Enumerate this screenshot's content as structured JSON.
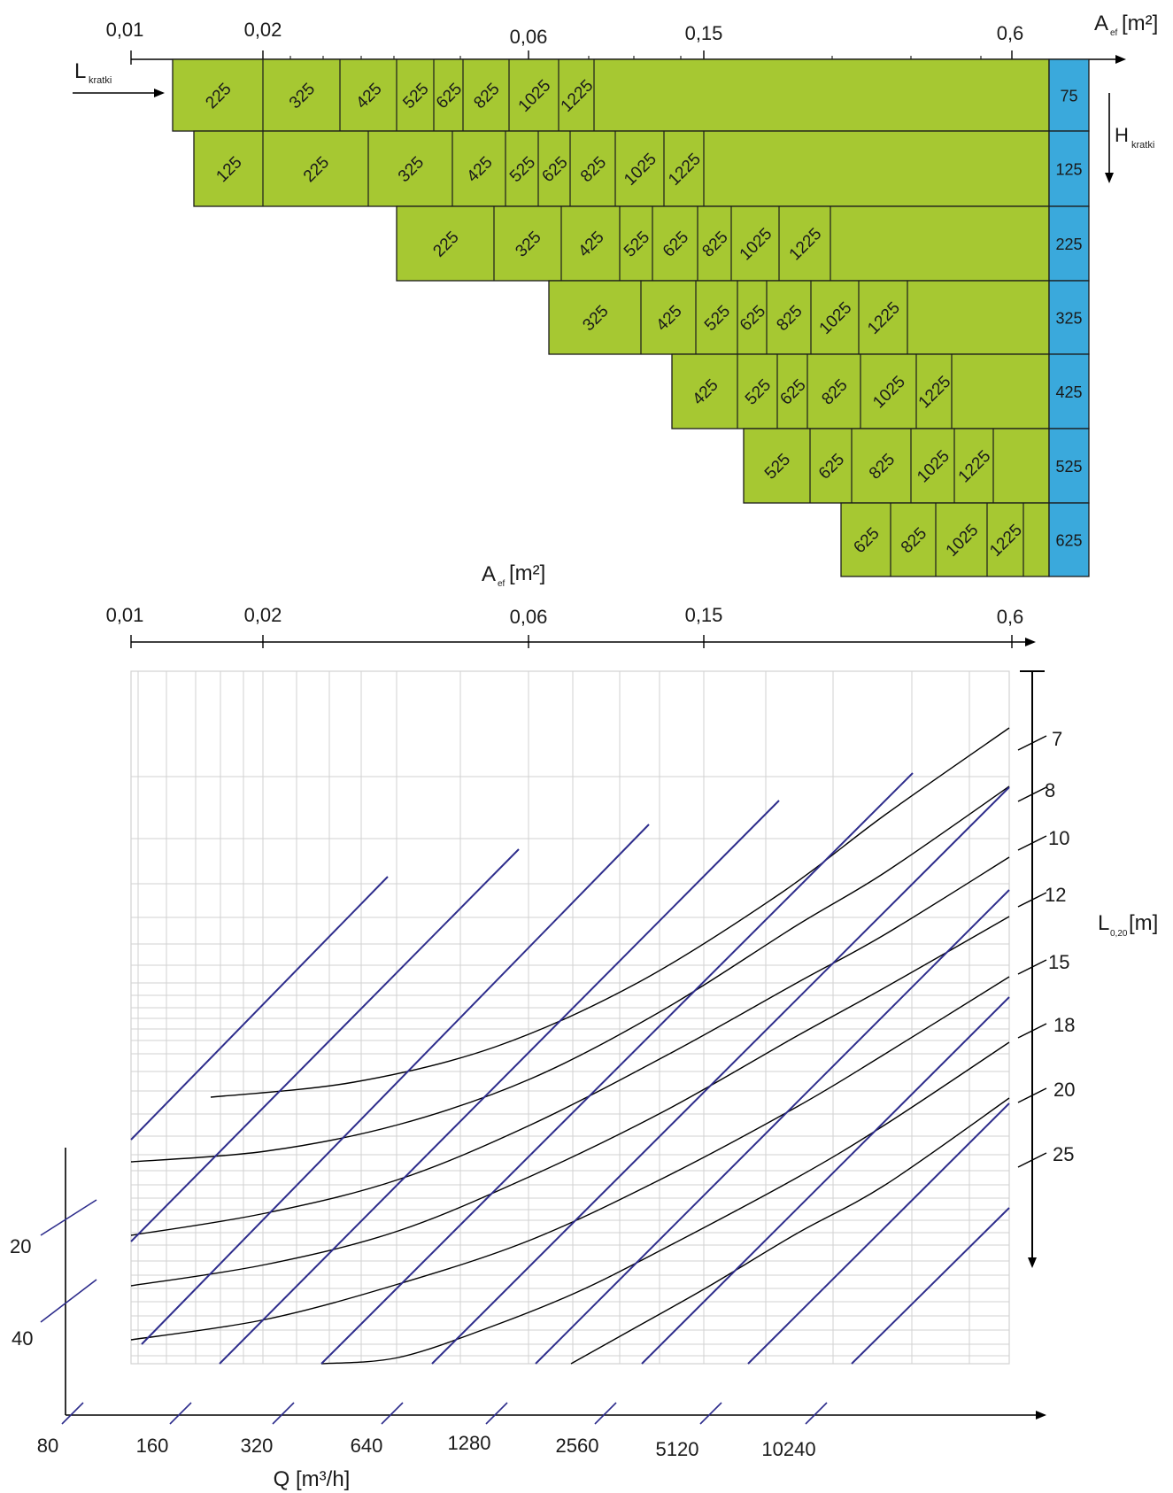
{
  "chart_data": {
    "type": "nomogram",
    "top_table": {
      "axis": {
        "label_main": "A",
        "label_sub": "ef",
        "label_unit": "[m²]",
        "ticks": [
          "0,01",
          "0,02",
          "0,06",
          "0,15",
          "0,6"
        ],
        "scale": "log"
      },
      "row_axis": {
        "label_main": "H",
        "label_sub": "kratki"
      },
      "col_axis": {
        "label_main": "L",
        "label_sub": "kratki"
      },
      "rows": [
        {
          "H": "75",
          "L": [
            "225",
            "325",
            "425",
            "525",
            "625",
            "825",
            "1025",
            "1225"
          ]
        },
        {
          "H": "125",
          "L": [
            "125",
            "225",
            "325",
            "425",
            "525",
            "625",
            "825",
            "1025",
            "1225"
          ]
        },
        {
          "H": "225",
          "L": [
            "225",
            "325",
            "425",
            "525",
            "625",
            "825",
            "1025",
            "1225"
          ]
        },
        {
          "H": "325",
          "L": [
            "325",
            "425",
            "525",
            "625",
            "825",
            "1025",
            "1225"
          ]
        },
        {
          "H": "425",
          "L": [
            "425",
            "525",
            "625",
            "825",
            "1025",
            "1225"
          ]
        },
        {
          "H": "525",
          "L": [
            "525",
            "625",
            "825",
            "1025",
            "1225"
          ]
        },
        {
          "H": "625",
          "L": [
            "625",
            "825",
            "1025",
            "1225"
          ]
        }
      ]
    },
    "main_chart": {
      "x_axis": {
        "label_main": "A",
        "label_sub": "ef",
        "label_unit": "[m²]",
        "ticks": [
          "0,01",
          "0,02",
          "0,06",
          "0,15",
          "0,6"
        ],
        "scale": "log"
      },
      "right_axis": {
        "label_main": "L",
        "label_sub": "0,20",
        "label_unit": "[m]",
        "ticks": [
          "7",
          "8",
          "10",
          "12",
          "15",
          "18",
          "20",
          "25"
        ]
      },
      "left_axis": {
        "ticks": [
          "20",
          "40"
        ]
      },
      "q_axis": {
        "label": "Q [m³/h]",
        "ticks": [
          "80",
          "160",
          "320",
          "640",
          "1280",
          "2560",
          "5120",
          "10240"
        ]
      },
      "grid": true,
      "series_note": "9 straight diagonal lines (Q families) and 6 curved lines (throw length families)"
    }
  },
  "colors": {
    "cell_fill": "#a6c832",
    "h_fill": "#3aa9dc",
    "diagonal_line": "#2e2d8c",
    "curve_line": "#000000",
    "grid_line": "#d2d2d2"
  }
}
